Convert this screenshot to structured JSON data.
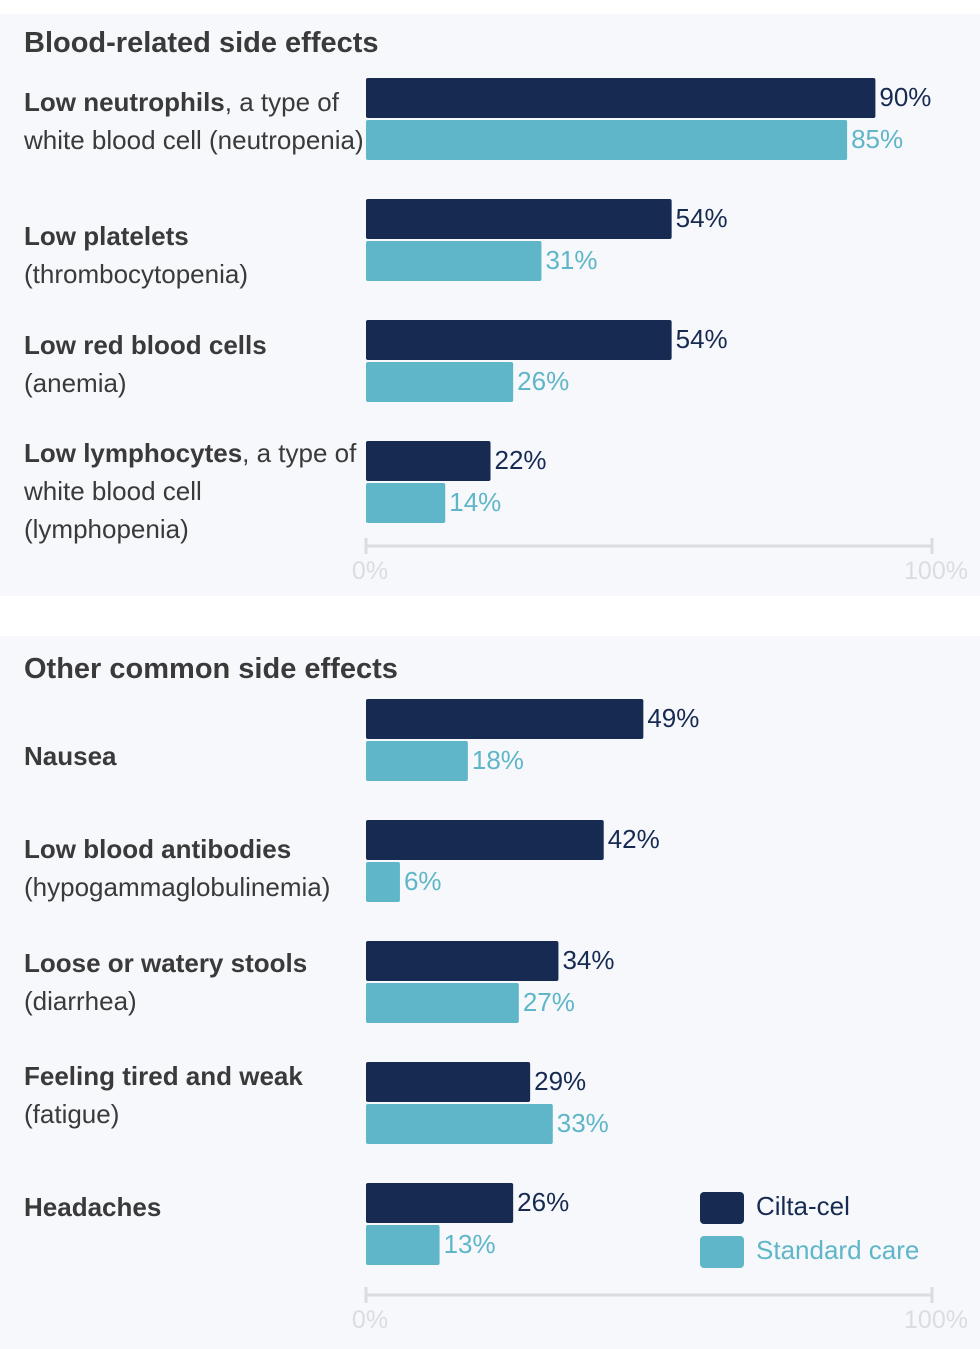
{
  "chart_data": [
    {
      "type": "bar",
      "orientation": "horizontal",
      "title": "Blood-related side effects",
      "categories": [
        {
          "bold": "Low neutrophils",
          "rest": ", a type of white blood cell (neutropenia)"
        },
        {
          "bold": "Low platelets",
          "rest": " (thrombocytopenia)"
        },
        {
          "bold": "Low red blood cells",
          "rest": " (anemia)"
        },
        {
          "bold": "Low lymphocytes",
          "rest": ", a type of white blood cell (lymphopenia)"
        }
      ],
      "series": [
        {
          "name": "Cilta-cel",
          "values": [
            90,
            54,
            54,
            22
          ]
        },
        {
          "name": "Standard care",
          "values": [
            85,
            31,
            26,
            14
          ]
        }
      ],
      "value_labels": {
        "Cilta-cel": [
          "90%",
          "54%",
          "54%",
          "22%"
        ],
        "Standard care": [
          "85%",
          "31%",
          "26%",
          "14%"
        ]
      },
      "xlim": [
        0,
        100
      ],
      "tick_labels": [
        "0%",
        "100%"
      ],
      "colors": {
        "Cilta-cel": "#172a52",
        "Standard care": "#5fb6c8",
        "axis": "#d9dde2"
      }
    },
    {
      "type": "bar",
      "orientation": "horizontal",
      "title": "Other common side effects",
      "categories": [
        {
          "bold": "Nausea",
          "rest": ""
        },
        {
          "bold": "Low blood antibodies",
          "rest": " (hypogammaglobulinemia)"
        },
        {
          "bold": "Loose or watery stools",
          "rest": " (diarrhea)"
        },
        {
          "bold": "Feeling tired and weak",
          "rest": " (fatigue)"
        },
        {
          "bold": "Headaches",
          "rest": ""
        }
      ],
      "series": [
        {
          "name": "Cilta-cel",
          "values": [
            49,
            42,
            34,
            29,
            26
          ]
        },
        {
          "name": "Standard care",
          "values": [
            18,
            6,
            27,
            33,
            13
          ]
        }
      ],
      "value_labels": {
        "Cilta-cel": [
          "49%",
          "42%",
          "34%",
          "29%",
          "26%"
        ],
        "Standard care": [
          "18%",
          "6%",
          "27%",
          "33%",
          "13%"
        ]
      },
      "xlim": [
        0,
        100
      ],
      "tick_labels": [
        "0%",
        "100%"
      ],
      "legend": [
        "Cilta-cel",
        "Standard care"
      ],
      "legend_position": "bottom-right",
      "colors": {
        "Cilta-cel": "#172a52",
        "Standard care": "#5fb6c8",
        "axis": "#d9dde2"
      }
    }
  ]
}
